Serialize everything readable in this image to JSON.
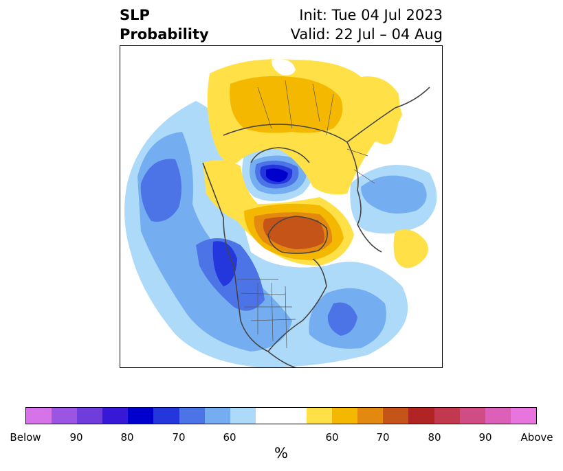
{
  "title": {
    "left_line1": "SLP",
    "left_line2": "Probability",
    "right_line1": "Init: Tue 04 Jul 2023",
    "right_line2": "Valid: 22 Jul – 04 Aug"
  },
  "colorbar": {
    "label": "%",
    "colors": [
      "#d773e8",
      "#9c55e3",
      "#6f3ddc",
      "#3718d6",
      "#0000cc",
      "#2337dd",
      "#4c74e6",
      "#74aef0",
      "#aedaf9",
      "#ffffff",
      "#ffffff",
      "#ffe046",
      "#f5b800",
      "#e3890f",
      "#c55418",
      "#b02424",
      "#c2384f",
      "#cf4c84",
      "#dd60b8",
      "#e874dd"
    ],
    "ticks": [
      "Below",
      "90",
      "80",
      "70",
      "60",
      "60",
      "70",
      "80",
      "90",
      "Above"
    ]
  },
  "map": {
    "projection": "north-polar-stereographic",
    "fill_colors": {
      "light_blue": "#aedaf9",
      "mid_blue": "#74aef0",
      "blue": "#4c74e6",
      "strong_blue": "#2337dd",
      "deep_blue": "#0000cc",
      "yellow": "#ffe046",
      "gold": "#f5b800",
      "orange": "#e3890f",
      "dark_orange": "#c55418"
    }
  }
}
